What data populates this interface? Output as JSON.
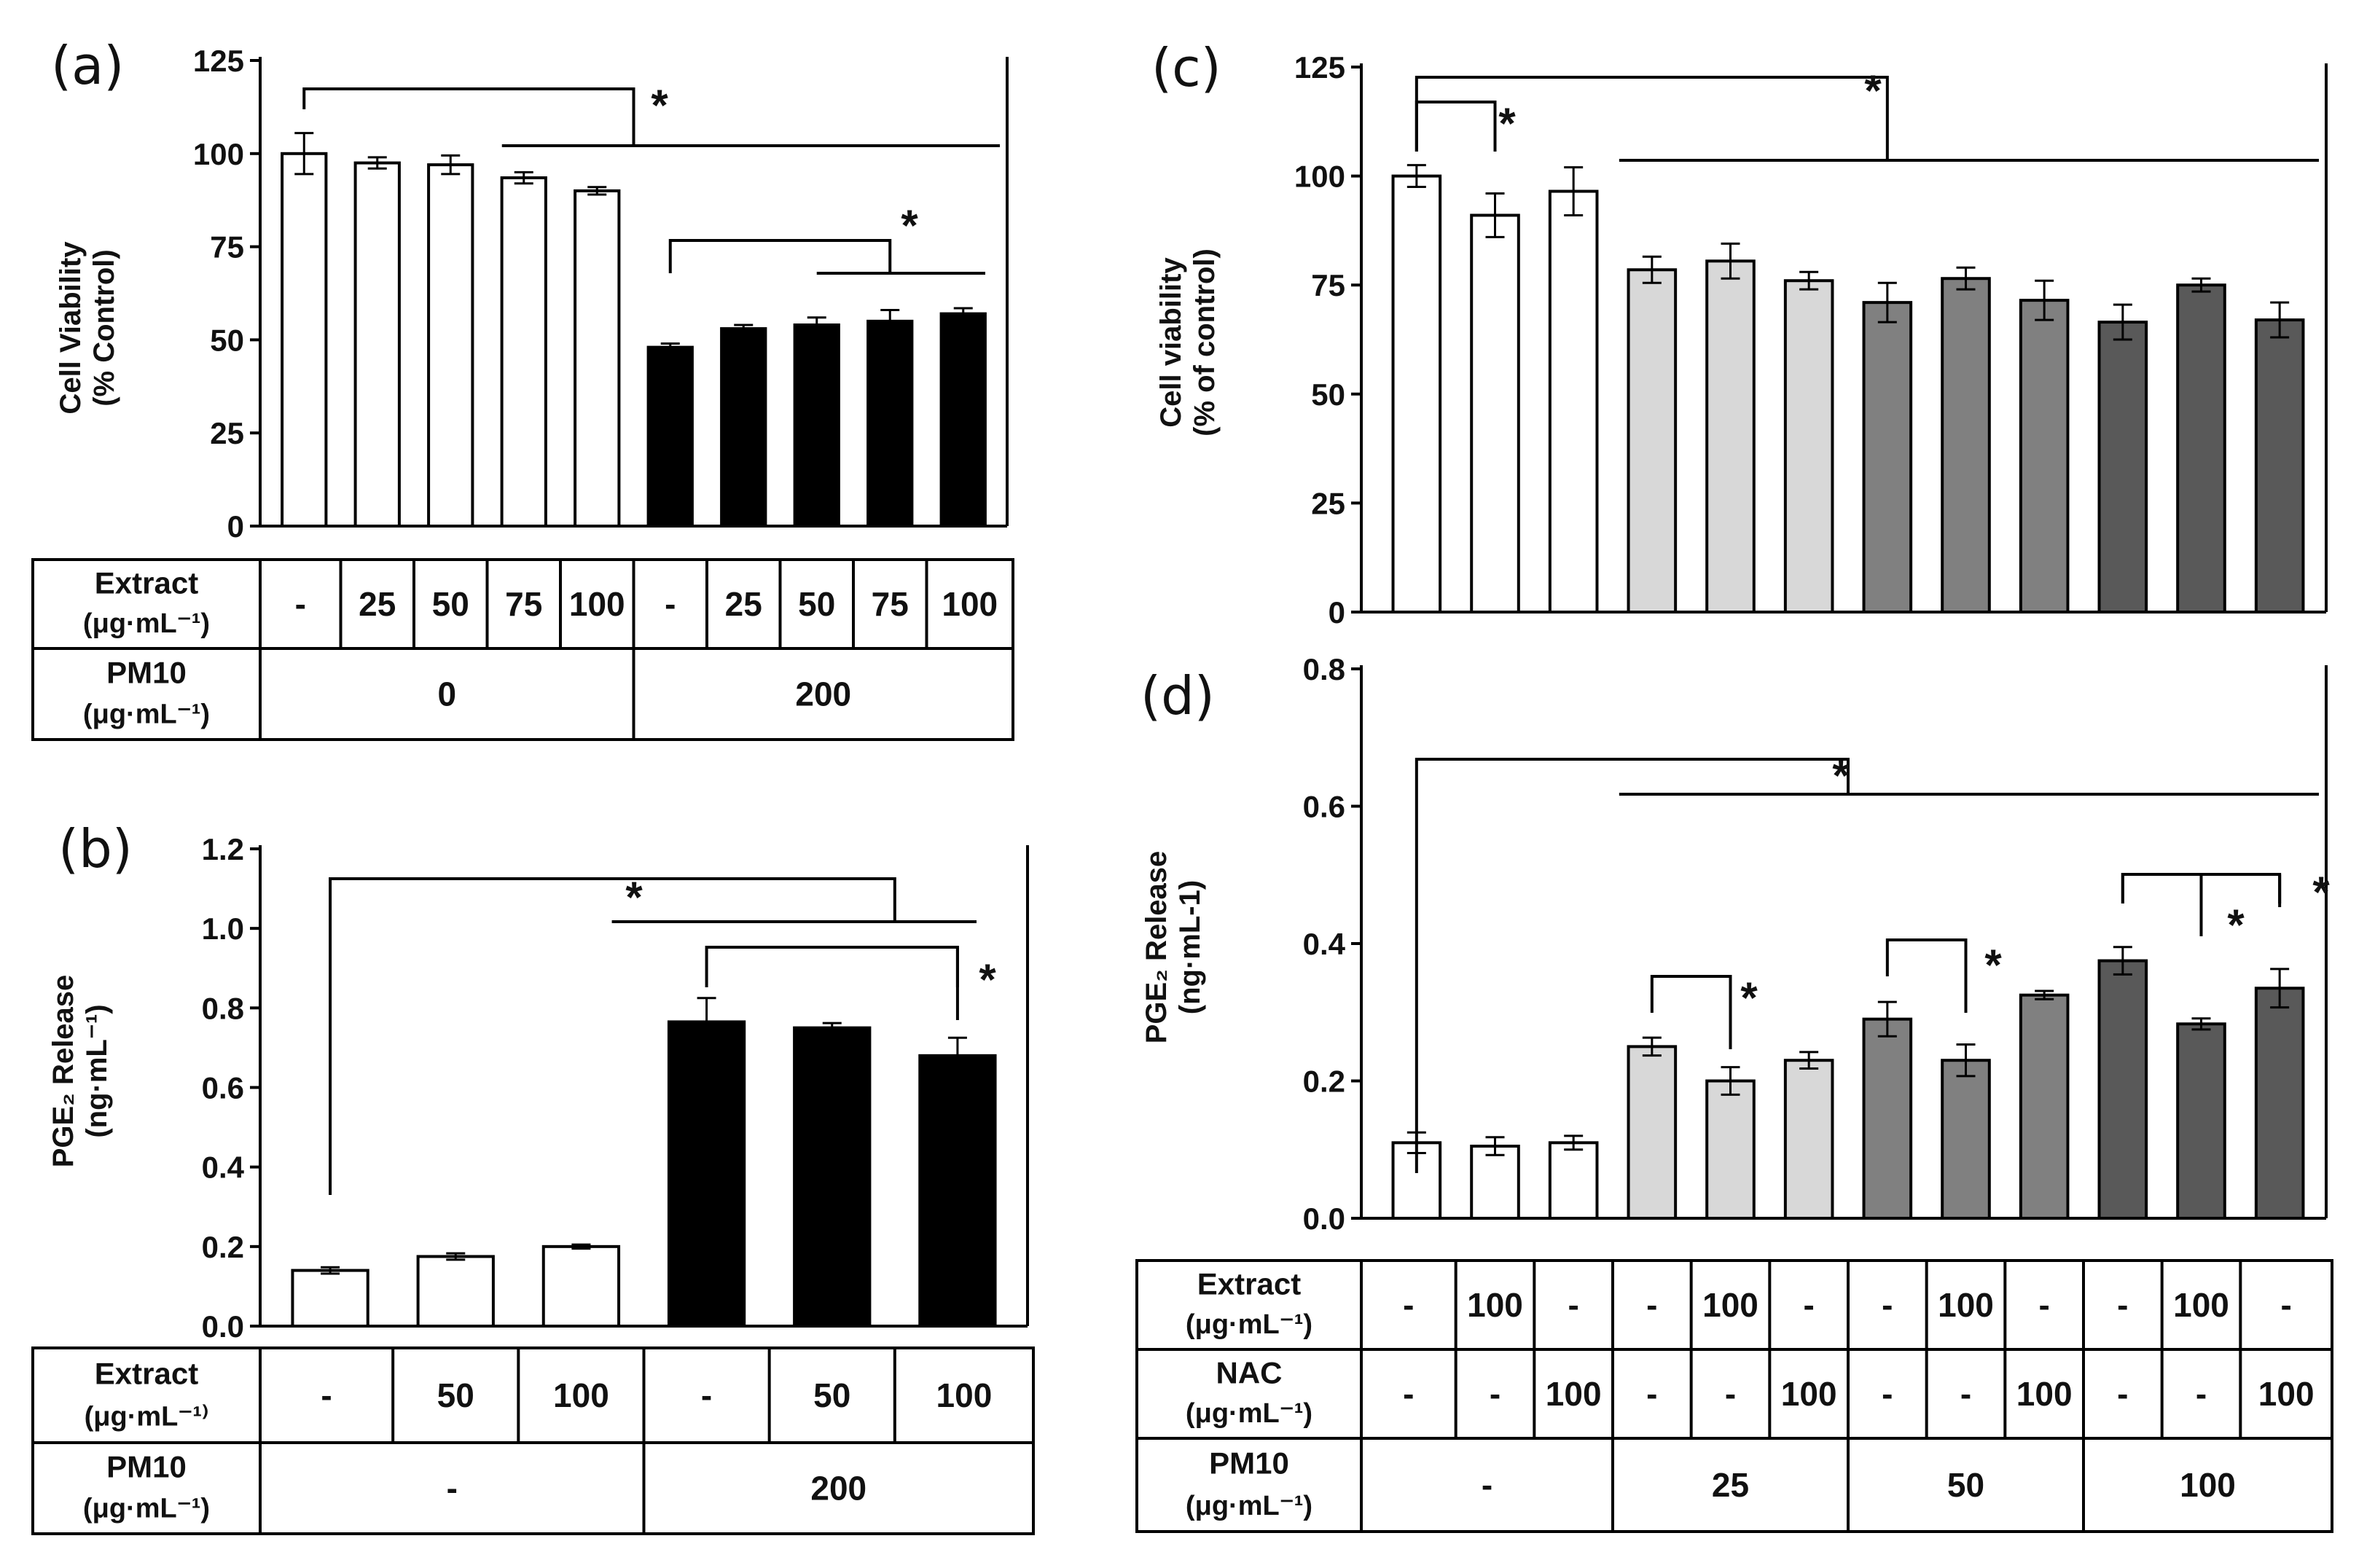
{
  "chart_data": [
    {
      "panel": "(a)",
      "type": "bar",
      "ylabel": [
        "Cell Viability",
        "(% Control)"
      ],
      "ylim": [
        0,
        125
      ],
      "yticks": [
        "0",
        "25",
        "50",
        "75",
        "100",
        "125"
      ],
      "values": [
        100,
        97.5,
        97,
        93.5,
        90,
        48,
        53,
        54,
        55,
        57
      ],
      "errors": [
        5.5,
        1.5,
        2.5,
        1.5,
        1,
        1,
        1,
        2,
        3,
        1.5
      ],
      "colors": [
        "#ffffff",
        "#ffffff",
        "#ffffff",
        "#ffffff",
        "#ffffff",
        "#000000",
        "#000000",
        "#000000",
        "#000000",
        "#000000"
      ],
      "sig_symbol": "*",
      "table": [
        {
          "label": [
            "Extract",
            "(μg·mL⁻¹)"
          ],
          "cells": [
            "-",
            "25",
            "50",
            "75",
            "100",
            "-",
            "25",
            "50",
            "75",
            "100"
          ]
        },
        {
          "label": [
            "PM10",
            "(μg·mL⁻¹)"
          ],
          "cells": [
            "0",
            "200"
          ]
        }
      ]
    },
    {
      "panel": "(b)",
      "type": "bar",
      "ylabel": [
        "PGE₂ Release",
        "(ng·mL⁻¹)"
      ],
      "ylim": [
        0,
        1.2
      ],
      "yticks": [
        "0.0",
        "0.2",
        "0.4",
        "0.6",
        "0.8",
        "1.0",
        "1.2"
      ],
      "values": [
        0.14,
        0.175,
        0.2,
        0.765,
        0.75,
        0.68
      ],
      "errors": [
        0.008,
        0.008,
        0.005,
        0.06,
        0.012,
        0.045
      ],
      "colors": [
        "#ffffff",
        "#ffffff",
        "#ffffff",
        "#000000",
        "#000000",
        "#000000"
      ],
      "sig_symbol": "*",
      "table": [
        {
          "label": [
            "Extract",
            "(μg·mL⁻¹⁾"
          ],
          "cells": [
            "-",
            "50",
            "100",
            "-",
            "50",
            "100"
          ]
        },
        {
          "label": [
            "PM10",
            "(μg·mL⁻¹)"
          ],
          "cells": [
            "-",
            "200"
          ]
        }
      ]
    },
    {
      "panel": "(c)",
      "type": "bar",
      "ylabel": [
        "Cell viability",
        "(% of control)"
      ],
      "ylim": [
        0,
        125
      ],
      "yticks": [
        "0",
        "25",
        "50",
        "75",
        "100",
        "125"
      ],
      "values": [
        100,
        91,
        96.5,
        78.5,
        80.5,
        76,
        71,
        76.5,
        71.5,
        66.5,
        75,
        67
      ],
      "errors": [
        2.5,
        5,
        5.5,
        3,
        4,
        2,
        4.5,
        2.5,
        4.5,
        4,
        1.5,
        4
      ],
      "colors": [
        "#ffffff",
        "#ffffff",
        "#ffffff",
        "#d8d8d8",
        "#d8d8d8",
        "#d8d8d8",
        "#808080",
        "#808080",
        "#808080",
        "#595959",
        "#595959",
        "#595959"
      ],
      "sig_symbol": "*"
    },
    {
      "panel": "(d)",
      "type": "bar",
      "ylabel": [
        "PGE₂ Release",
        "(ng·mL-1)"
      ],
      "ylim": [
        0,
        0.8
      ],
      "yticks": [
        "0.0",
        "0.2",
        "0.4",
        "0.6",
        "0.8"
      ],
      "values": [
        0.11,
        0.105,
        0.11,
        0.25,
        0.2,
        0.23,
        0.29,
        0.23,
        0.325,
        0.375,
        0.283,
        0.335
      ],
      "errors": [
        0.015,
        0.013,
        0.01,
        0.013,
        0.02,
        0.012,
        0.025,
        0.023,
        0.006,
        0.02,
        0.008,
        0.028
      ],
      "colors": [
        "#ffffff",
        "#ffffff",
        "#ffffff",
        "#d8d8d8",
        "#d8d8d8",
        "#d8d8d8",
        "#808080",
        "#808080",
        "#808080",
        "#595959",
        "#595959",
        "#595959"
      ],
      "sig_symbol": "*",
      "table": [
        {
          "label": [
            "Extract",
            "(μg·mL⁻¹)"
          ],
          "cells": [
            "-",
            "100",
            "-",
            "-",
            "100",
            "-",
            "-",
            "100",
            "-",
            "-",
            "100",
            "-"
          ]
        },
        {
          "label": [
            "NAC",
            "(μg·mL⁻¹)"
          ],
          "cells": [
            "-",
            "-",
            "100",
            "-",
            "-",
            "100",
            "-",
            "-",
            "100",
            "-",
            "-",
            "100"
          ]
        },
        {
          "label": [
            "PM10",
            "(μg·mL⁻¹)"
          ],
          "cells": [
            "-",
            "25",
            "50",
            "100"
          ]
        }
      ]
    }
  ]
}
